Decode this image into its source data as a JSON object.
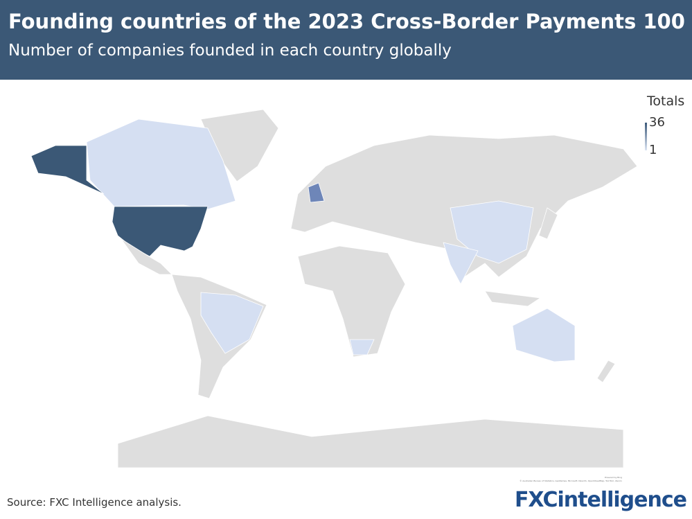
{
  "header": {
    "title": "Founding countries of the 2023 Cross-Border Payments 100",
    "subtitle": "Number of companies founded in each country globally"
  },
  "legend": {
    "title": "Totals",
    "range": [
      1,
      36
    ],
    "ticks": [
      36,
      1
    ],
    "colors": [
      "#dbe4f3",
      "#3c5a7a"
    ]
  },
  "attribution": [
    "Powered by Bing",
    "© Australian Bureau of Statistics, GeoNames, Microsoft, Navinfo, OpenStreetMap, TomTom, Zenrin"
  ],
  "footer": {
    "source": "Source: FXC Intelligence analysis.",
    "logo": "FXCintelligence"
  }
}
